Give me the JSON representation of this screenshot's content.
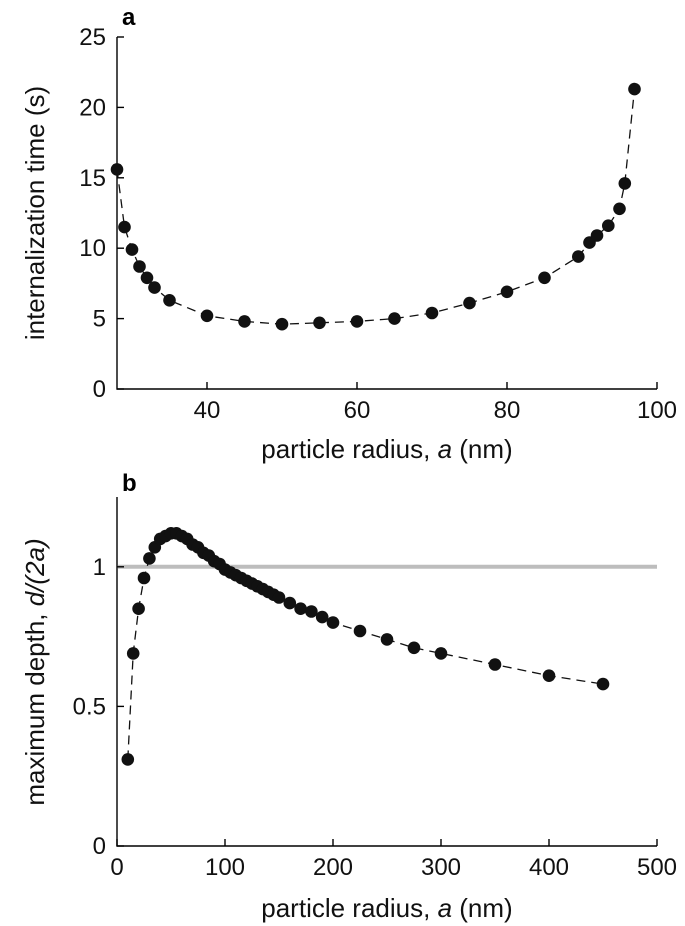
{
  "chart_data": [
    {
      "type": "scatter",
      "panel_label": "a",
      "xlabel_prefix": "particle radius, ",
      "xlabel_var": "a",
      "xlabel_suffix": " (nm)",
      "ylabel": "internalization time (s)",
      "xlim": [
        28,
        100
      ],
      "ylim": [
        0,
        25
      ],
      "xticks": [
        40,
        60,
        80,
        100
      ],
      "yticks": [
        0,
        5,
        10,
        15,
        20,
        25
      ],
      "series": [
        {
          "style": "markers with dashed fit line",
          "x": [
            28,
            29,
            30,
            31,
            32,
            33,
            35,
            40,
            45,
            50,
            55,
            60,
            65,
            70,
            75,
            80,
            85,
            89.5,
            91,
            92,
            93.5,
            95,
            95.7,
            97
          ],
          "y": [
            15.6,
            11.5,
            9.9,
            8.7,
            7.9,
            7.2,
            6.3,
            5.2,
            4.8,
            4.6,
            4.7,
            4.8,
            5.0,
            5.4,
            6.1,
            6.9,
            7.9,
            9.4,
            10.4,
            10.9,
            11.6,
            12.8,
            14.6,
            21.3
          ]
        }
      ]
    },
    {
      "type": "scatter",
      "panel_label": "b",
      "xlabel_prefix": "particle radius, ",
      "xlabel_var": "a",
      "xlabel_suffix": " (nm)",
      "ylabel_prefix": "maximum depth, ",
      "ylabel_var": "d/(2a)",
      "xlim": [
        0,
        500
      ],
      "ylim": [
        0,
        1.25
      ],
      "xticks": [
        0,
        100,
        200,
        300,
        400,
        500
      ],
      "yticks": [
        0,
        0.5,
        1
      ],
      "ytick_labels": [
        "0",
        "0.5",
        "1"
      ],
      "reference_line": {
        "y": 1.0,
        "color": "#bdbdbd"
      },
      "series": [
        {
          "style": "markers with dashed fit line",
          "x": [
            10,
            15,
            20,
            25,
            30,
            35,
            40,
            45,
            50,
            55,
            60,
            65,
            70,
            75,
            80,
            85,
            90,
            95,
            100,
            105,
            110,
            115,
            120,
            125,
            130,
            135,
            140,
            145,
            150,
            160,
            170,
            180,
            190,
            200,
            225,
            250,
            275,
            300,
            350,
            400,
            450
          ],
          "y": [
            0.31,
            0.69,
            0.85,
            0.96,
            1.03,
            1.07,
            1.1,
            1.11,
            1.12,
            1.12,
            1.11,
            1.1,
            1.08,
            1.07,
            1.05,
            1.04,
            1.02,
            1.01,
            0.99,
            0.98,
            0.97,
            0.96,
            0.95,
            0.94,
            0.93,
            0.92,
            0.91,
            0.9,
            0.89,
            0.87,
            0.85,
            0.84,
            0.82,
            0.8,
            0.77,
            0.74,
            0.71,
            0.69,
            0.65,
            0.61,
            0.58
          ]
        }
      ]
    }
  ]
}
